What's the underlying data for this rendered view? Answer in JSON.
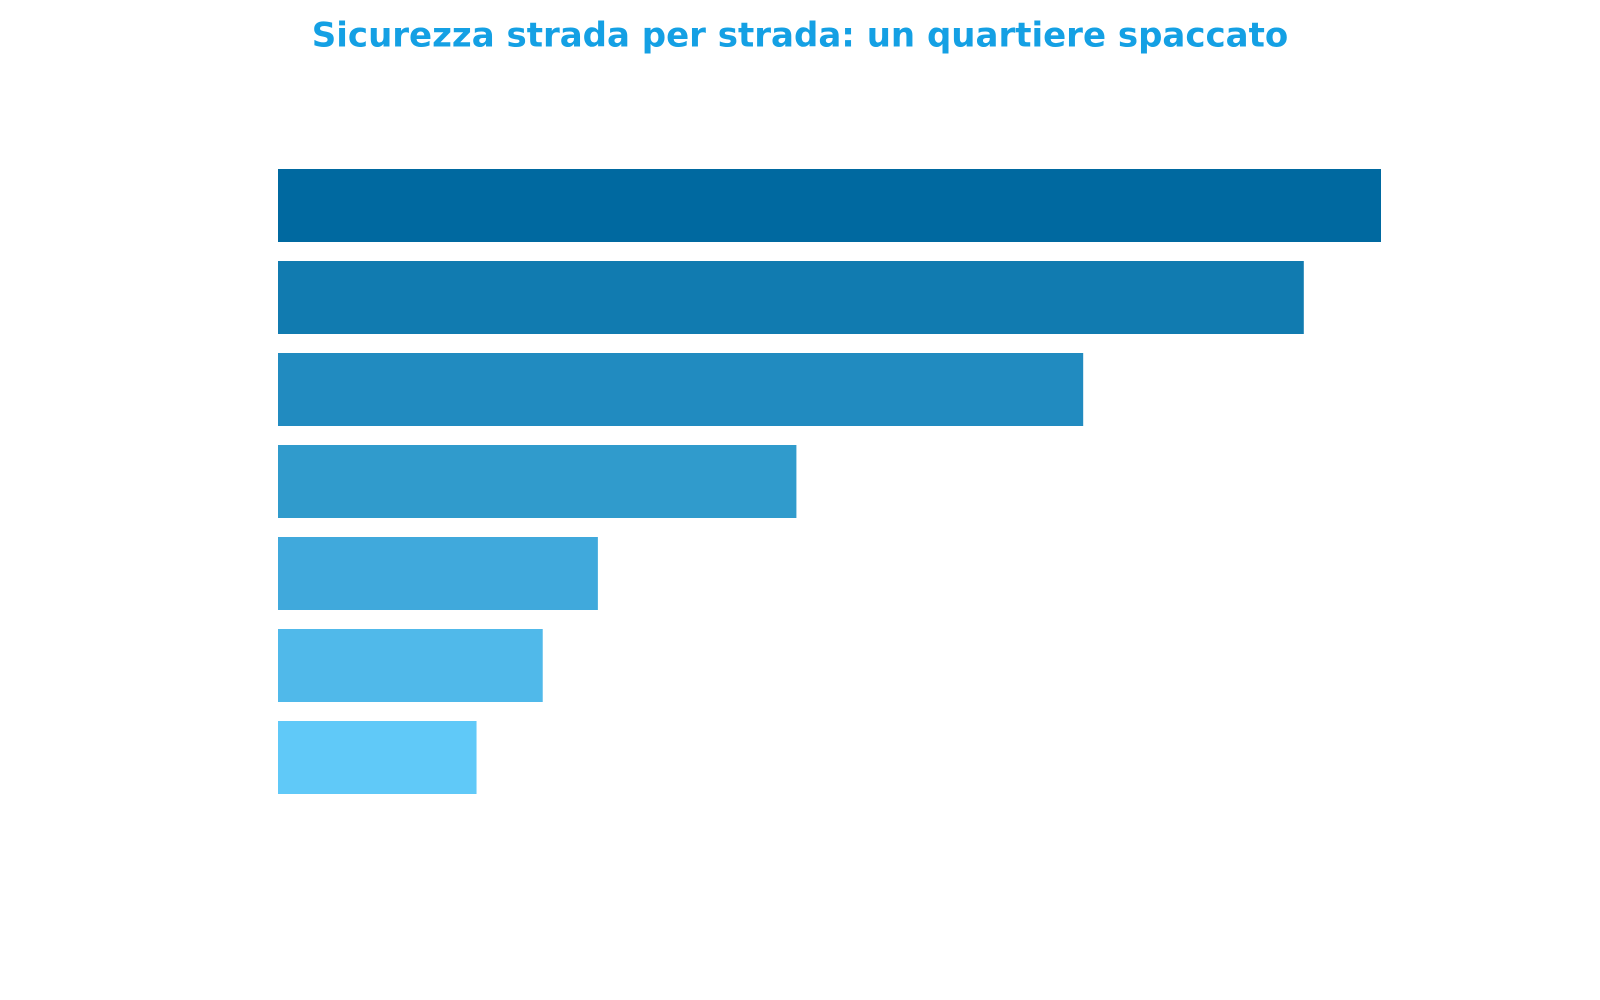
{
  "chart_data": {
    "type": "barh",
    "title": "Sicurezza strada per strada: un quartiere spaccato",
    "values": [
      100,
      93,
      73,
      47,
      29,
      24,
      18
    ],
    "colors": [
      "#0069a0",
      "#117bb0",
      "#218bc0",
      "#309bcc",
      "#40a9dc",
      "#50b9ea",
      "#60c9f8"
    ],
    "xlim": [
      0,
      100
    ]
  }
}
